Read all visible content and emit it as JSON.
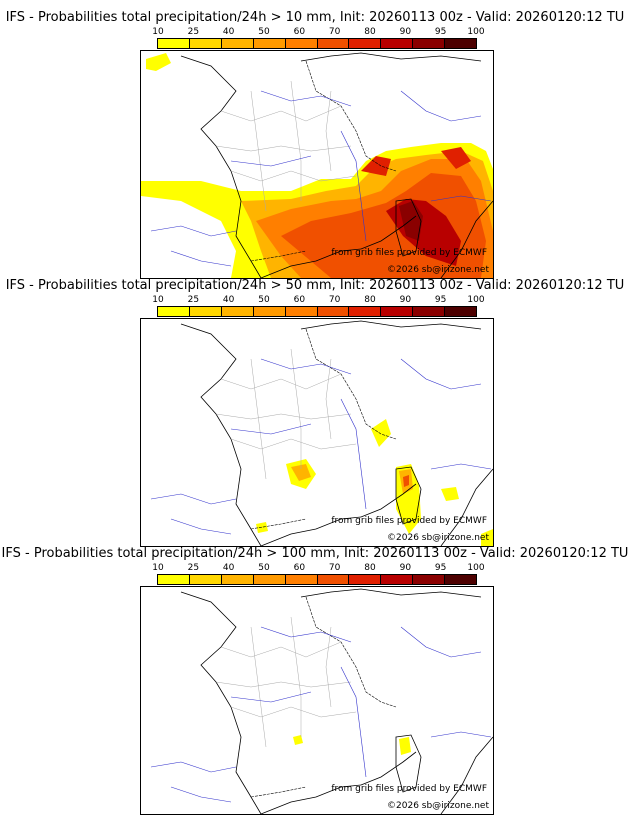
{
  "legend": {
    "ticks": [
      "10",
      "25",
      "40",
      "50",
      "60",
      "70",
      "80",
      "90",
      "95",
      "100"
    ],
    "colors": [
      "#ffff00",
      "#ffd700",
      "#ffb400",
      "#ff9a00",
      "#ff7f00",
      "#f05000",
      "#e02000",
      "#b80000",
      "#8a0000",
      "#4d0000"
    ]
  },
  "maps": [
    {
      "title": "IFS - Probabilities total precipitation/24h > 10 mm, Init: 20260113 00z - Valid: 20260120:12 TU",
      "credit_grib": "from grib files provided by ECMWF",
      "credit_copyright": "©2026 sb@irizone.net"
    },
    {
      "title": "IFS - Probabilities total precipitation/24h > 50 mm, Init: 20260113 00z - Valid: 20260120:12 TU",
      "credit_grib": "from grib files provided by ECMWF",
      "credit_copyright": "©2026 sb@irizone.net"
    },
    {
      "title": "IFS - Probabilities total precipitation/24h > 100 mm, Init: 20260113 00z - Valid: 20260120:12 TU",
      "credit_grib": "from grib files provided by ECMWF",
      "credit_copyright": "©2026 sb@irizone.net"
    }
  ]
}
